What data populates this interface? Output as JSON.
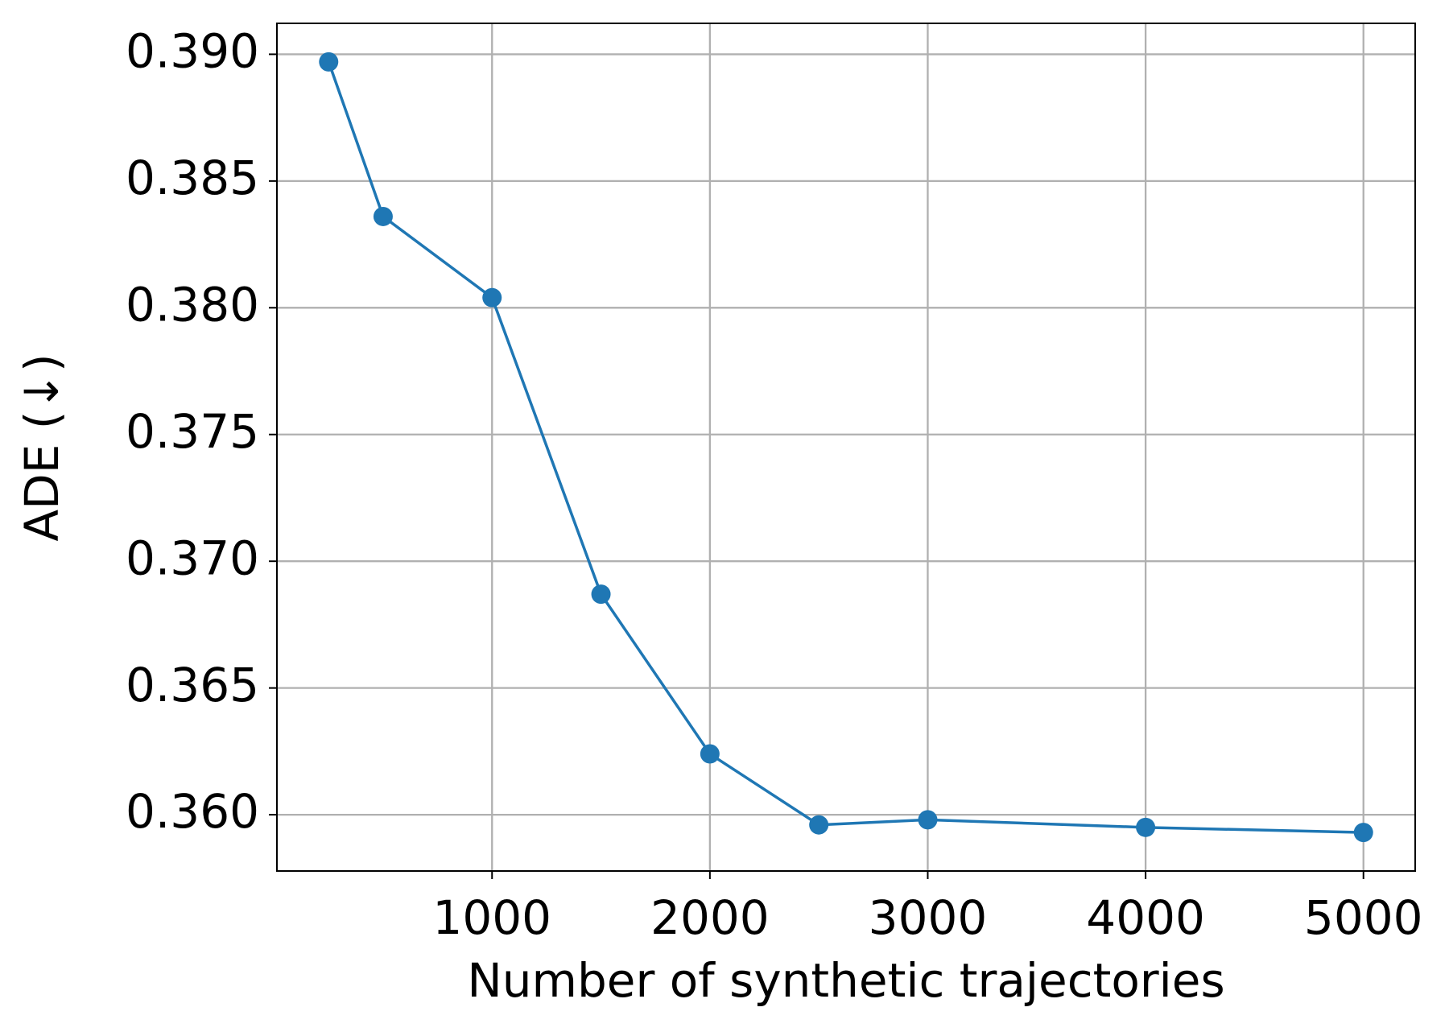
{
  "chart_data": {
    "type": "line",
    "x_label": "Number of synthetic trajectories",
    "y_label": "ADE (↓)",
    "x": [
      250,
      500,
      1000,
      1500,
      2000,
      2500,
      3000,
      4000,
      5000
    ],
    "series": [
      {
        "color": "#1f77b4",
        "values": [
          0.3897,
          0.3836,
          0.3804,
          0.3687,
          0.3624,
          0.3596,
          0.3598,
          0.3595,
          0.3593
        ]
      }
    ],
    "xlim": [
      12.5,
      5237.5
    ],
    "xticks": [
      1000,
      2000,
      3000,
      4000,
      5000
    ],
    "ylim": [
      0.35778,
      0.39122
    ],
    "yticks": [
      {
        "value": 0.36,
        "label": "0.360"
      },
      0.365,
      {
        "value": 0.37,
        "label": "0.370"
      },
      0.375,
      {
        "value": 0.38,
        "label": "0.380"
      },
      0.385,
      {
        "value": 0.39,
        "label": "0.390"
      }
    ],
    "grid": true
  }
}
